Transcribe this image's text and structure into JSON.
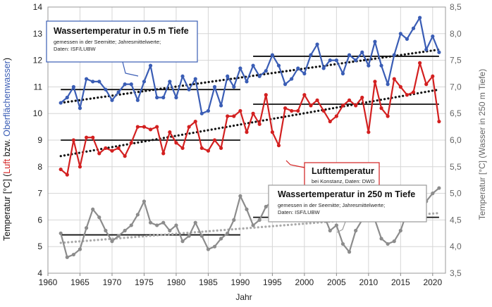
{
  "chart_data": {
    "type": "line",
    "xlabel": "Jahr",
    "ylabel_left": {
      "parts": [
        {
          "text": "Temperatur [°C] (",
          "color": "#111111"
        },
        {
          "text": "Luft",
          "color": "#d32020"
        },
        {
          "text": " bzw. ",
          "color": "#111111"
        },
        {
          "text": "Oberflächenwasser",
          "color": "#3a5db5"
        },
        {
          "text": ")",
          "color": "#111111"
        }
      ]
    },
    "ylabel_right": "Temperatur [°C] (Wasser in 250 m Tiefe)",
    "xlim": [
      1960,
      2022
    ],
    "ylim_left": [
      4,
      14
    ],
    "ylim_right": [
      3.5,
      8.5
    ],
    "xticks": [
      "1960",
      "1965",
      "1970",
      "1975",
      "1980",
      "1985",
      "1990",
      "1995",
      "2000",
      "2005",
      "2010",
      "2015",
      "2020"
    ],
    "yticks_left": [
      "4",
      "5",
      "6",
      "7",
      "8",
      "9",
      "10",
      "11",
      "12",
      "13",
      "14"
    ],
    "yticks_right": [
      "3,5",
      "4,0",
      "4,5",
      "5,0",
      "5,5",
      "6,0",
      "6,5",
      "7,0",
      "7,5",
      "8,0",
      "8,5"
    ],
    "grid": true,
    "years": [
      1962,
      1963,
      1964,
      1965,
      1966,
      1967,
      1968,
      1969,
      1970,
      1971,
      1972,
      1973,
      1974,
      1975,
      1976,
      1977,
      1978,
      1979,
      1980,
      1981,
      1982,
      1983,
      1984,
      1985,
      1986,
      1987,
      1988,
      1989,
      1990,
      1991,
      1992,
      1993,
      1994,
      1995,
      1996,
      1997,
      1998,
      1999,
      2000,
      2001,
      2002,
      2003,
      2004,
      2005,
      2006,
      2007,
      2008,
      2009,
      2010,
      2011,
      2012,
      2013,
      2014,
      2015,
      2016,
      2017,
      2018,
      2019,
      2020,
      2021
    ],
    "series": [
      {
        "key": "surface",
        "axis": "left",
        "color": "#3a5db5",
        "values": [
          10.4,
          10.6,
          11.0,
          10.2,
          11.3,
          11.2,
          11.2,
          10.9,
          10.5,
          10.8,
          11.1,
          11.1,
          10.5,
          11.2,
          11.8,
          10.6,
          10.6,
          11.2,
          10.6,
          11.4,
          10.9,
          11.3,
          10.0,
          10.1,
          11.0,
          10.3,
          11.4,
          11.0,
          11.7,
          11.2,
          11.8,
          11.4,
          11.6,
          12.2,
          11.8,
          11.1,
          11.3,
          11.7,
          11.5,
          12.2,
          12.6,
          11.7,
          12.0,
          12.0,
          11.5,
          12.2,
          12.0,
          12.3,
          11.8,
          12.7,
          11.8,
          11.1,
          12.2,
          13.0,
          12.8,
          13.2,
          13.6,
          12.4,
          12.9,
          12.3
        ]
      },
      {
        "key": "air",
        "axis": "left",
        "color": "#d32020",
        "values": [
          7.9,
          7.7,
          9.0,
          8.0,
          9.1,
          9.1,
          8.5,
          8.7,
          8.6,
          8.7,
          8.4,
          8.9,
          9.5,
          9.5,
          9.4,
          9.5,
          8.5,
          9.3,
          8.9,
          8.7,
          9.5,
          9.7,
          8.7,
          8.6,
          9.0,
          8.7,
          9.9,
          9.9,
          10.1,
          9.3,
          10.0,
          9.6,
          10.7,
          9.3,
          8.8,
          10.2,
          10.1,
          10.1,
          10.7,
          10.3,
          10.5,
          10.1,
          9.7,
          9.9,
          10.3,
          10.5,
          10.3,
          10.6,
          9.3,
          11.2,
          10.2,
          9.9,
          11.3,
          11.0,
          10.7,
          10.8,
          11.9,
          11.1,
          11.4,
          9.7
        ]
      },
      {
        "key": "deep",
        "axis": "right",
        "color": "#8c8c8c",
        "values": [
          4.25,
          3.8,
          3.85,
          3.95,
          4.35,
          4.7,
          4.55,
          4.3,
          4.1,
          4.2,
          4.3,
          4.4,
          4.6,
          4.85,
          4.45,
          4.4,
          4.45,
          4.3,
          4.4,
          4.1,
          4.2,
          4.45,
          4.2,
          3.95,
          4.0,
          4.15,
          4.25,
          4.5,
          4.95,
          4.7,
          4.4,
          4.5,
          4.75,
          4.85,
          4.6,
          4.5,
          4.5,
          4.55,
          4.6,
          4.7,
          4.8,
          4.6,
          4.3,
          4.4,
          4.05,
          3.9,
          4.3,
          4.5,
          4.6,
          4.5,
          4.15,
          4.05,
          4.1,
          4.3,
          4.65,
          4.7,
          4.55,
          4.85,
          5.0,
          5.1
        ]
      }
    ],
    "trends": [
      {
        "key": "surface-trend",
        "axis": "left",
        "x": [
          1962,
          2021
        ],
        "y": [
          10.4,
          12.4
        ],
        "color": "#111111"
      },
      {
        "key": "air-trend",
        "axis": "left",
        "x": [
          1962,
          2021
        ],
        "y": [
          8.4,
          10.9
        ],
        "color": "#111111"
      },
      {
        "key": "deep-trend",
        "axis": "right",
        "x": [
          1962,
          2021
        ],
        "y": [
          4.07,
          4.63
        ],
        "color": "#aaaaaa"
      }
    ],
    "means": [
      {
        "key": "surface-mean-1",
        "axis": "left",
        "x": [
          1962,
          1990
        ],
        "y": 10.9
      },
      {
        "key": "surface-mean-2",
        "axis": "left",
        "x": [
          1992,
          2021
        ],
        "y": 12.15
      },
      {
        "key": "air-mean-1",
        "axis": "left",
        "x": [
          1962,
          1990
        ],
        "y": 9.0
      },
      {
        "key": "air-mean-2",
        "axis": "left",
        "x": [
          1992,
          2021
        ],
        "y": 10.35
      },
      {
        "key": "deep-mean-1",
        "axis": "right",
        "x": [
          1962,
          1990
        ],
        "y": 4.22
      },
      {
        "key": "deep-mean-2",
        "axis": "right",
        "x": [
          1992,
          2021
        ],
        "y": 4.55
      }
    ],
    "annotations": {
      "surface": {
        "title": "Wassertemperatur in 0.5 m Tiefe",
        "lines": [
          "gemessen in der Seemitte; Jahresmittelwerte;",
          "Daten: ISF/LUBW"
        ],
        "title_color": "#111111"
      },
      "air": {
        "title": "Lufttemperatur",
        "lines": [
          "bei Konstanz, Daten: DWD"
        ],
        "title_color": "#111111"
      },
      "deep": {
        "title": "Wassertemperatur in 250 m Tiefe",
        "lines": [
          "gemessen in der Seemitte; Jahresmittelwerte;",
          "Daten: ISF/LUBW"
        ],
        "title_color": "#111111"
      }
    }
  }
}
